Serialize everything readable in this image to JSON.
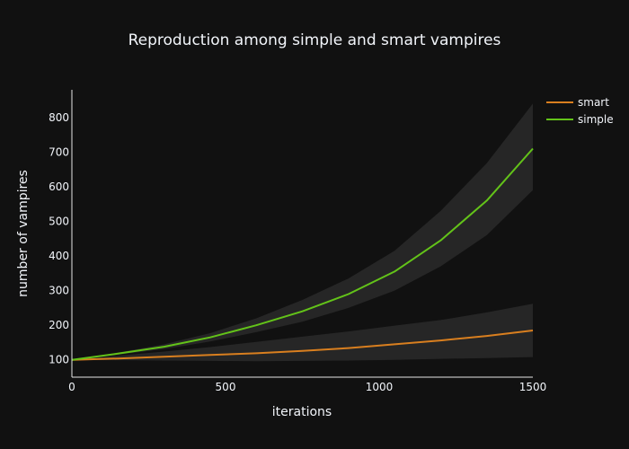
{
  "chart_data": {
    "type": "line",
    "title": "Reproduction among simple and smart vampires",
    "xlabel": "iterations",
    "ylabel": "number of vampires",
    "xlim": [
      0,
      1500
    ],
    "ylim": [
      50,
      880
    ],
    "xticks": [
      0,
      500,
      1000,
      1500
    ],
    "yticks": [
      100,
      200,
      300,
      400,
      500,
      600,
      700,
      800
    ],
    "grid": false,
    "legend_position": "top-right",
    "background_color": "#111111",
    "band_color": "#262626",
    "series": [
      {
        "name": "smart",
        "color": "#d97f1f",
        "x": [
          0,
          150,
          300,
          450,
          600,
          750,
          900,
          1050,
          1200,
          1350,
          1500
        ],
        "y": [
          100,
          104,
          109,
          114,
          119,
          126,
          134,
          145,
          156,
          169,
          185
        ],
        "lower": [
          100,
          99,
          98,
          97,
          96,
          97,
          98,
          100,
          103,
          105,
          108
        ],
        "upper": [
          100,
          112,
          124,
          137,
          152,
          167,
          182,
          199,
          215,
          237,
          262
        ]
      },
      {
        "name": "simple",
        "color": "#63c319",
        "x": [
          0,
          150,
          300,
          450,
          600,
          750,
          900,
          1050,
          1200,
          1350,
          1500
        ],
        "y": [
          100,
          118,
          138,
          165,
          200,
          240,
          290,
          355,
          445,
          560,
          710
        ],
        "lower": [
          100,
          115,
          131,
          153,
          180,
          210,
          250,
          300,
          370,
          460,
          590
        ],
        "upper": [
          100,
          121,
          145,
          177,
          220,
          273,
          335,
          415,
          530,
          668,
          840
        ]
      }
    ]
  }
}
